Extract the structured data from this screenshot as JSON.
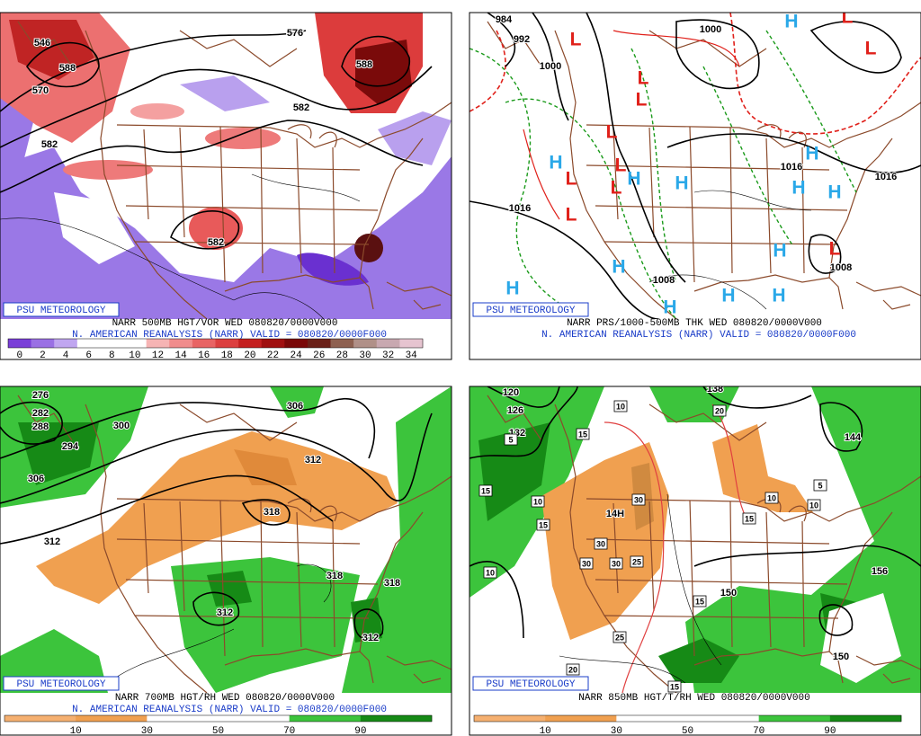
{
  "panels": [
    {
      "badge": "PSU METEOROLOGY",
      "caption": "NARR 500MB HGT/VOR WED 080820/0000V000",
      "subcaption": "N. AMERICAN REANALYSIS (NARR) VALID = 080820/0000F000",
      "colorbar": {
        "ticks": [
          0,
          2,
          4,
          6,
          8,
          10,
          12,
          14,
          16,
          18,
          20,
          22,
          24,
          26,
          28,
          30,
          32,
          34
        ],
        "colors": [
          "#7a3fd8",
          "#9a70e4",
          "#c0a6f0",
          "#ffffff",
          "#ffffff",
          "#ffffff",
          "#f6b4b4",
          "#f08c8c",
          "#e86464",
          "#dc4040",
          "#c42020",
          "#a01010",
          "#7a0808",
          "#6a2018",
          "#8e6050",
          "#b09088",
          "#c8a8b0",
          "#e6c4d0"
        ]
      },
      "labels": [
        "546",
        "588",
        "570",
        "582",
        "576",
        "588",
        "582",
        "582"
      ]
    },
    {
      "badge": "PSU METEOROLOGY",
      "caption": "NARR PRS/1000-500MB THK WED 080820/0000V000",
      "subcaption": "N. AMERICAN REANALYSIS (NARR) VALID = 080820/0000F000",
      "labels": [
        "984",
        "992",
        "1000",
        "1000",
        "1016",
        "1016",
        "1008",
        "1008",
        "1016"
      ],
      "lows": [
        "L",
        "L",
        "L",
        "L",
        "L",
        "L",
        "L",
        "L",
        "L",
        "L",
        "L"
      ],
      "highs": [
        "H",
        "H",
        "H",
        "H",
        "H",
        "H",
        "H",
        "H",
        "H",
        "H",
        "H",
        "H",
        "H"
      ]
    },
    {
      "badge": "PSU METEOROLOGY",
      "caption": "NARR 700MB HGT/RH WED 080820/0000V000",
      "subcaption": "N. AMERICAN REANALYSIS (NARR) VALID = 080820/0000F000",
      "colorbar": {
        "ticks": [
          10,
          30,
          50,
          70,
          90
        ],
        "colors": [
          "#f5b070",
          "#f0a050",
          "#ffffff",
          "#ffffff",
          "#3cc43c",
          "#168a16"
        ]
      },
      "labels": [
        "276",
        "282",
        "288",
        "294",
        "300",
        "306",
        "306",
        "312",
        "318",
        "312",
        "318",
        "318",
        "312",
        "312"
      ]
    },
    {
      "badge": "PSU METEOROLOGY",
      "caption": "NARR 850MB HGT/T/RH WED 080820/0000V000",
      "colorbar": {
        "ticks": [
          10,
          30,
          50,
          70,
          90
        ],
        "colors": [
          "#f5b070",
          "#f0a050",
          "#ffffff",
          "#ffffff",
          "#3cc43c",
          "#168a16"
        ]
      },
      "labels": [
        "120",
        "126",
        "132",
        "138",
        "144",
        "150",
        "156",
        "150",
        "14H"
      ],
      "boxes": [
        "10",
        "20",
        "15",
        "5",
        "15",
        "10",
        "30",
        "15",
        "30",
        "30",
        "30",
        "25",
        "10",
        "15",
        "25",
        "20",
        "15",
        "5",
        "10",
        "10",
        "15"
      ]
    }
  ]
}
